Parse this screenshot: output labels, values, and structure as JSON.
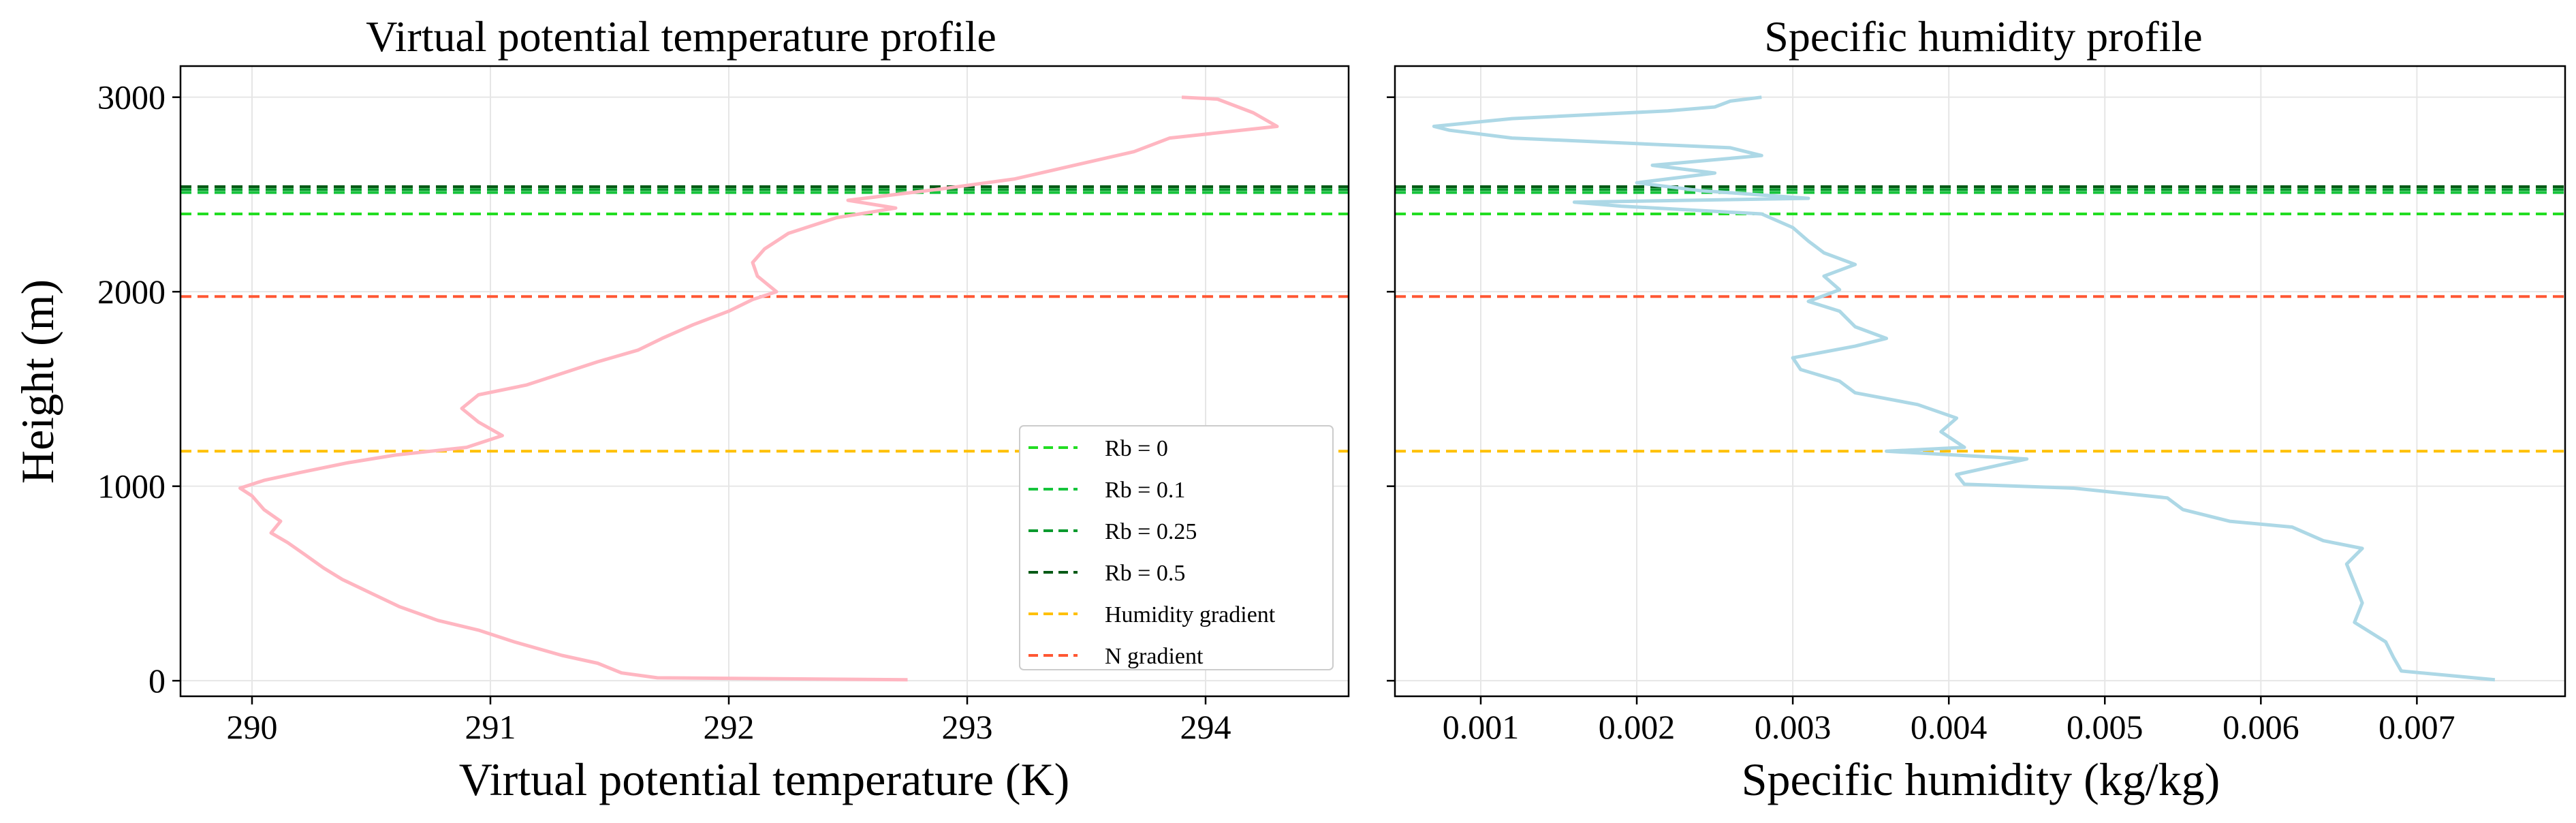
{
  "figure": {
    "background": "#ffffff"
  },
  "chart_data": [
    {
      "type": "line",
      "title": "Virtual potential temperature profile",
      "xlabel": "Virtual potential temperature (K)",
      "ylabel": "Height (m)",
      "xlim": [
        289.7,
        294.6
      ],
      "ylim": [
        -80,
        3160
      ],
      "xticks": [
        290,
        291,
        292,
        293,
        294
      ],
      "yticks": [
        0,
        1000,
        2000,
        3000
      ],
      "xtick_labels": [
        "290",
        "291",
        "292",
        "293",
        "294"
      ],
      "ytick_labels": [
        "0",
        "1000",
        "2000",
        "3000"
      ],
      "grid": true,
      "series": [
        {
          "name": "Virtual potential temperature",
          "color": "#ffb6c1",
          "points": [
            [
              292.75,
              5
            ],
            [
              291.7,
              15
            ],
            [
              291.55,
              40
            ],
            [
              291.45,
              90
            ],
            [
              291.3,
              130
            ],
            [
              291.1,
              200
            ],
            [
              290.95,
              260
            ],
            [
              290.78,
              310
            ],
            [
              290.62,
              380
            ],
            [
              290.5,
              450
            ],
            [
              290.38,
              520
            ],
            [
              290.3,
              580
            ],
            [
              290.22,
              650
            ],
            [
              290.15,
              710
            ],
            [
              290.08,
              760
            ],
            [
              290.12,
              820
            ],
            [
              290.05,
              880
            ],
            [
              290.0,
              950
            ],
            [
              289.95,
              990
            ],
            [
              290.05,
              1030
            ],
            [
              290.2,
              1070
            ],
            [
              290.4,
              1120
            ],
            [
              290.6,
              1160
            ],
            [
              290.9,
              1200
            ],
            [
              291.05,
              1260
            ],
            [
              290.95,
              1330
            ],
            [
              290.88,
              1400
            ],
            [
              290.95,
              1470
            ],
            [
              291.15,
              1520
            ],
            [
              291.3,
              1580
            ],
            [
              291.45,
              1640
            ],
            [
              291.62,
              1700
            ],
            [
              291.72,
              1760
            ],
            [
              291.85,
              1830
            ],
            [
              292.0,
              1900
            ],
            [
              292.1,
              1960
            ],
            [
              292.2,
              2000
            ],
            [
              292.12,
              2080
            ],
            [
              292.1,
              2150
            ],
            [
              292.15,
              2220
            ],
            [
              292.25,
              2300
            ],
            [
              292.45,
              2380
            ],
            [
              292.7,
              2430
            ],
            [
              292.5,
              2470
            ],
            [
              292.9,
              2530
            ],
            [
              293.2,
              2580
            ],
            [
              293.45,
              2650
            ],
            [
              293.7,
              2720
            ],
            [
              293.85,
              2790
            ],
            [
              294.3,
              2850
            ],
            [
              294.2,
              2920
            ],
            [
              294.05,
              2990
            ],
            [
              293.9,
              3000
            ]
          ]
        }
      ]
    },
    {
      "type": "line",
      "title": "Specific humidity profile",
      "xlabel": "Specific humidity (kg/kg)",
      "ylabel": "",
      "xlim": [
        0.00045,
        0.00795
      ],
      "ylim": [
        -80,
        3160
      ],
      "xticks": [
        0.001,
        0.002,
        0.003,
        0.004,
        0.005,
        0.006,
        0.007
      ],
      "yticks": [
        0,
        1000,
        2000,
        3000
      ],
      "xtick_labels": [
        "0.001",
        "0.002",
        "0.003",
        "0.004",
        "0.005",
        "0.006",
        "0.007"
      ],
      "ytick_labels": [
        "",
        "",
        "",
        ""
      ],
      "grid": true,
      "series": [
        {
          "name": "Specific humidity",
          "color": "#add8e6",
          "points": [
            [
              0.0075,
              5
            ],
            [
              0.0069,
              50
            ],
            [
              0.00685,
              120
            ],
            [
              0.0068,
              200
            ],
            [
              0.0066,
              300
            ],
            [
              0.00665,
              400
            ],
            [
              0.0066,
              500
            ],
            [
              0.00655,
              600
            ],
            [
              0.00665,
              680
            ],
            [
              0.0064,
              720
            ],
            [
              0.0062,
              790
            ],
            [
              0.0058,
              820
            ],
            [
              0.0055,
              880
            ],
            [
              0.0054,
              940
            ],
            [
              0.0048,
              990
            ],
            [
              0.0041,
              1010
            ],
            [
              0.00405,
              1060
            ],
            [
              0.0045,
              1140
            ],
            [
              0.0036,
              1180
            ],
            [
              0.0041,
              1200
            ],
            [
              0.00395,
              1280
            ],
            [
              0.00405,
              1350
            ],
            [
              0.0038,
              1420
            ],
            [
              0.0034,
              1480
            ],
            [
              0.0033,
              1540
            ],
            [
              0.00305,
              1600
            ],
            [
              0.003,
              1660
            ],
            [
              0.0034,
              1720
            ],
            [
              0.0036,
              1760
            ],
            [
              0.0034,
              1820
            ],
            [
              0.0033,
              1900
            ],
            [
              0.0031,
              1950
            ],
            [
              0.0033,
              2010
            ],
            [
              0.0032,
              2080
            ],
            [
              0.0034,
              2140
            ],
            [
              0.0032,
              2200
            ],
            [
              0.0031,
              2260
            ],
            [
              0.003,
              2330
            ],
            [
              0.0028,
              2400
            ],
            [
              0.0019,
              2440
            ],
            [
              0.0016,
              2460
            ],
            [
              0.0031,
              2480
            ],
            [
              0.0024,
              2520
            ],
            [
              0.002,
              2560
            ],
            [
              0.0025,
              2610
            ],
            [
              0.0021,
              2650
            ],
            [
              0.0028,
              2700
            ],
            [
              0.0026,
              2740
            ],
            [
              0.0012,
              2790
            ],
            [
              0.0008,
              2830
            ],
            [
              0.0007,
              2850
            ],
            [
              0.0012,
              2890
            ],
            [
              0.0022,
              2930
            ],
            [
              0.0025,
              2950
            ],
            [
              0.0026,
              2980
            ],
            [
              0.0028,
              3000
            ]
          ]
        }
      ]
    }
  ],
  "hlines": [
    {
      "label": "Rb = 0",
      "y": 2400,
      "color": "#22dd22"
    },
    {
      "label": "Rb = 0.1",
      "y": 2510,
      "color": "#16c43c"
    },
    {
      "label": "Rb = 0.25",
      "y": 2525,
      "color": "#0a9a2e"
    },
    {
      "label": "Rb = 0.5",
      "y": 2540,
      "color": "#045a16"
    },
    {
      "label": "Humidity gradient",
      "y": 1180,
      "color": "#ffc000"
    },
    {
      "label": "N gradient",
      "y": 1975,
      "color": "#ff5733"
    }
  ],
  "legend": {
    "location": "lower-right",
    "entries": [
      "Rb = 0",
      "Rb = 0.1",
      "Rb = 0.25",
      "Rb = 0.5",
      "Humidity gradient",
      "N gradient"
    ]
  }
}
